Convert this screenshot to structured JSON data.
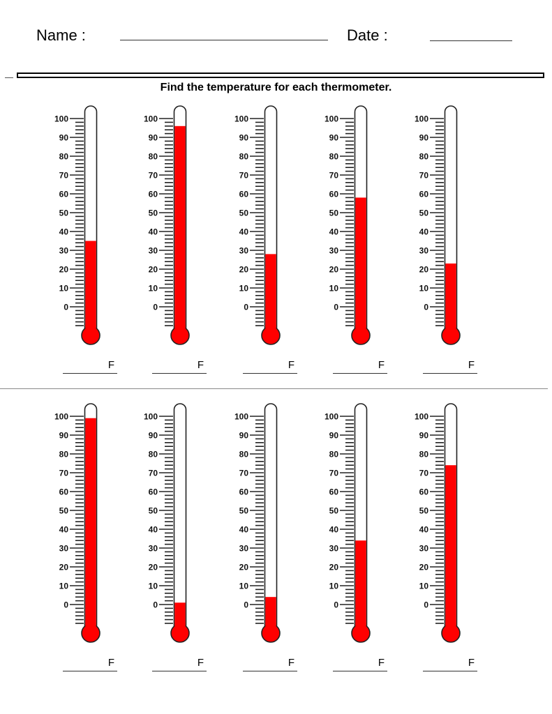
{
  "header": {
    "name_label": "Name :",
    "date_label": "Date :"
  },
  "instructions": "Find the temperature for each thermometer.",
  "scale": {
    "labels": [
      "100",
      "90",
      "80",
      "70",
      "60",
      "50",
      "40",
      "30",
      "20",
      "10",
      "0"
    ],
    "min": -10,
    "max": 100,
    "minor_tick_step": 2
  },
  "unit_label": "F",
  "colors": {
    "mercury": "#ff0000",
    "outline": "#222222"
  },
  "rows": [
    {
      "thermometers": [
        {
          "value": 35
        },
        {
          "value": 96
        },
        {
          "value": 28
        },
        {
          "value": 58
        },
        {
          "value": 23
        }
      ]
    },
    {
      "thermometers": [
        {
          "value": 99
        },
        {
          "value": 1
        },
        {
          "value": 4
        },
        {
          "value": 34
        },
        {
          "value": 74
        }
      ]
    }
  ]
}
